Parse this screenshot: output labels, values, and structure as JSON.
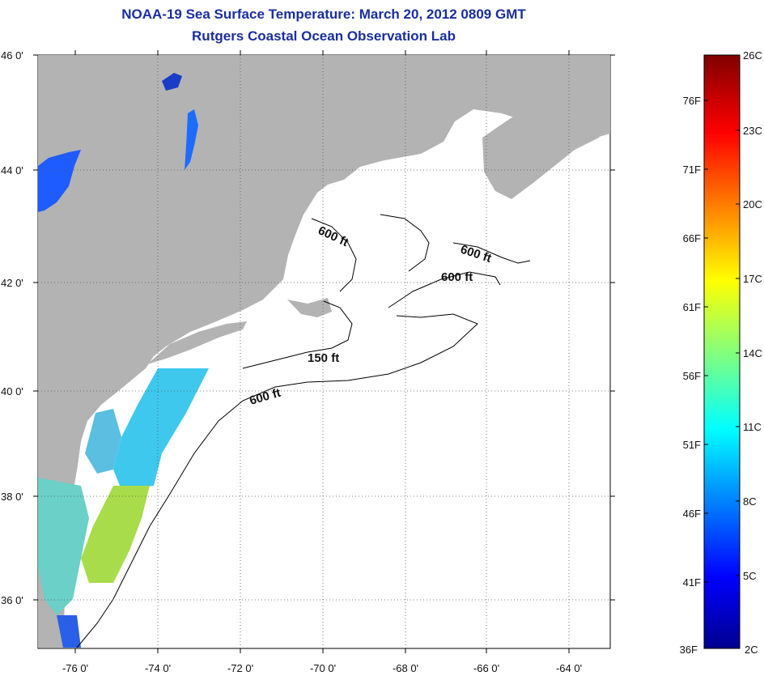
{
  "title": "NOAA-19 Sea Surface Temperature:  March 20, 2012 0809 GMT",
  "subtitle": "Rutgers Coastal Ocean Observation Lab",
  "lat_ticks": [
    "46 0'",
    "44 0'",
    "42 0'",
    "40 0'",
    "38 0'",
    "36 0'"
  ],
  "lon_ticks": [
    "-76 0'",
    "-74 0'",
    "-72 0'",
    "-70 0'",
    "-68 0'",
    "-66 0'",
    "-64 0'"
  ],
  "depth_labels": [
    "600 ft",
    "600 ft",
    "600 ft",
    "150 ft",
    "600 ft"
  ],
  "colorbar": {
    "fahrenheit": [
      "76F",
      "71F",
      "66F",
      "61F",
      "56F",
      "51F",
      "46F",
      "41F",
      "36F"
    ],
    "celsius": [
      "26C",
      "23C",
      "20C",
      "17C",
      "14C",
      "11C",
      "8C",
      "5C",
      "2C"
    ]
  },
  "colors": {
    "land": "#b3b3b3",
    "ocean": "#ffffff",
    "title": "#1a2ea0"
  }
}
